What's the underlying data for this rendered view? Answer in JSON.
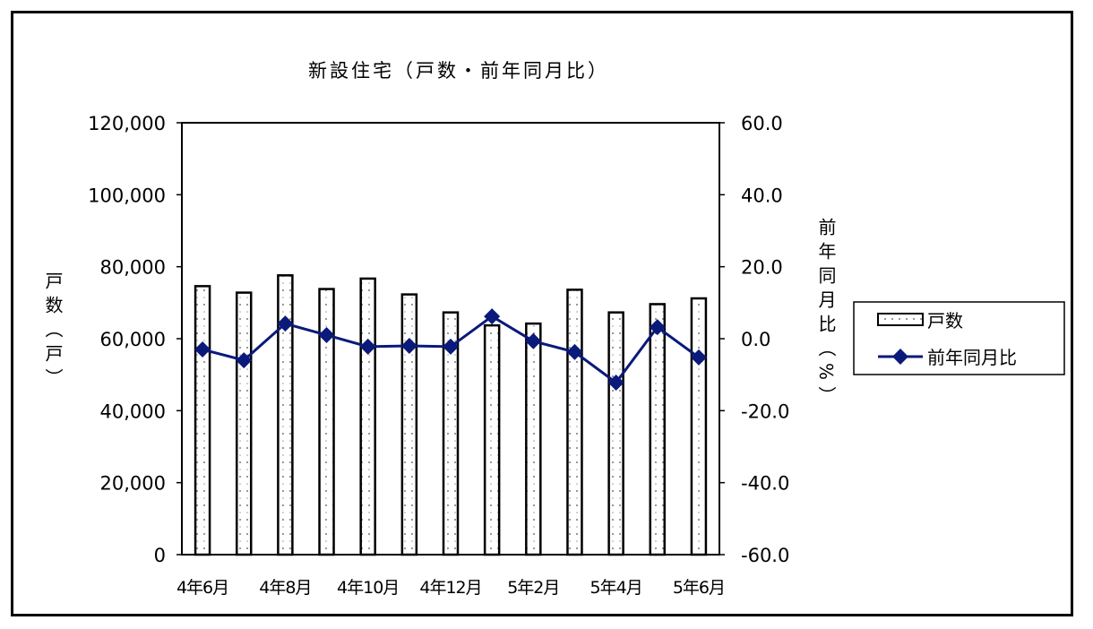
{
  "chart_data": {
    "type": "bar+line",
    "title": "新設住宅（戸数・前年同月比）",
    "categories": [
      "4年6月",
      "4年7月",
      "4年8月",
      "4年9月",
      "4年10月",
      "4年11月",
      "4年12月",
      "5年1月",
      "5年2月",
      "5年3月",
      "5年4月",
      "5年5月",
      "5年6月"
    ],
    "x_tick_labels": [
      "4年6月",
      "4年8月",
      "4年10月",
      "4年12月",
      "5年2月",
      "5年4月",
      "5年6月"
    ],
    "series": [
      {
        "name": "戸数",
        "type": "bar",
        "axis": "left",
        "values": [
          74600,
          72800,
          77600,
          73800,
          76700,
          72300,
          67300,
          63700,
          64200,
          73600,
          67300,
          69600,
          71200
        ]
      },
      {
        "name": "前年同月比",
        "type": "line",
        "axis": "right",
        "color": "#0a1a7a",
        "values": [
          -3.0,
          -6.0,
          4.2,
          1.0,
          -2.2,
          -2.0,
          -2.2,
          6.2,
          -0.7,
          -3.7,
          -12.2,
          3.2,
          -5.2
        ]
      }
    ],
    "ylabel": "戸数（戸）",
    "ylabel_right": "前年同月比（%）",
    "ylim": [
      0,
      120000
    ],
    "ylim_right": [
      -60,
      60
    ],
    "y_ticks": [
      "0",
      "20,000",
      "40,000",
      "60,000",
      "80,000",
      "100,000",
      "120,000"
    ],
    "y_ticks_right": [
      "-60.0",
      "-40.0",
      "-20.0",
      "0.0",
      "20.0",
      "40.0",
      "60.0"
    ],
    "legend": [
      "戸数",
      "前年同月比"
    ],
    "legend_position": "right",
    "grid": false
  }
}
